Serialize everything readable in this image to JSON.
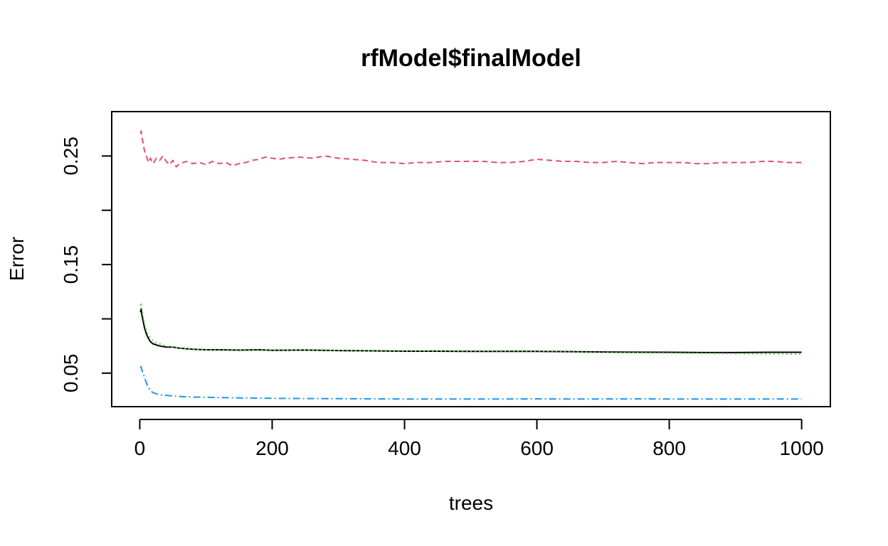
{
  "chart_data": {
    "type": "line",
    "title": "rfModel$finalModel",
    "xlabel": "trees",
    "ylabel": "Error",
    "xlim": [
      1,
      1000
    ],
    "ylim": [
      0.03,
      0.28
    ],
    "x_ticks": [
      0,
      200,
      400,
      600,
      800,
      1000
    ],
    "x_tick_labels": [
      "0",
      "200",
      "400",
      "600",
      "800",
      "1000"
    ],
    "y_ticks": [
      0.05,
      0.1,
      0.15,
      0.2,
      0.25
    ],
    "y_tick_labels": [
      "0.05",
      "",
      "0.15",
      "",
      "0.25"
    ],
    "grid": false,
    "legend": false,
    "colors": [
      "#000000",
      "#DF536B",
      "#61D04F",
      "#2297E6"
    ],
    "series": [
      {
        "color": "#000000",
        "dash": "solid",
        "x": [
          1,
          2,
          3,
          5,
          7,
          10,
          13,
          16,
          20,
          25,
          30,
          40,
          50,
          60,
          80,
          100,
          120,
          150,
          180,
          200,
          250,
          300,
          350,
          400,
          450,
          500,
          550,
          600,
          650,
          700,
          750,
          800,
          850,
          900,
          950,
          1000
        ],
        "y": [
          0.106,
          0.109,
          0.104,
          0.098,
          0.092,
          0.086,
          0.082,
          0.079,
          0.077,
          0.076,
          0.075,
          0.074,
          0.074,
          0.073,
          0.072,
          0.0715,
          0.0715,
          0.0712,
          0.0715,
          0.071,
          0.0713,
          0.0708,
          0.0705,
          0.0702,
          0.0702,
          0.07,
          0.07,
          0.07,
          0.0698,
          0.0695,
          0.0693,
          0.0692,
          0.069,
          0.069,
          0.0692,
          0.0692
        ]
      },
      {
        "color": "#DF536B",
        "dash": "8,5",
        "x": [
          1,
          2,
          3,
          5,
          7,
          10,
          13,
          16,
          20,
          25,
          30,
          35,
          40,
          45,
          50,
          55,
          60,
          70,
          80,
          90,
          100,
          110,
          120,
          130,
          140,
          150,
          160,
          170,
          180,
          190,
          200,
          210,
          220,
          240,
          260,
          280,
          300,
          320,
          340,
          360,
          380,
          400,
          420,
          440,
          460,
          480,
          500,
          520,
          540,
          560,
          580,
          600,
          620,
          640,
          660,
          680,
          700,
          720,
          740,
          760,
          780,
          800,
          820,
          840,
          860,
          880,
          900,
          920,
          940,
          960,
          980,
          1000
        ],
        "y": [
          0.271,
          0.273,
          0.268,
          0.262,
          0.255,
          0.25,
          0.244,
          0.248,
          0.243,
          0.248,
          0.246,
          0.25,
          0.245,
          0.242,
          0.246,
          0.24,
          0.243,
          0.245,
          0.243,
          0.244,
          0.242,
          0.245,
          0.243,
          0.244,
          0.241,
          0.243,
          0.244,
          0.246,
          0.247,
          0.249,
          0.248,
          0.247,
          0.248,
          0.249,
          0.248,
          0.25,
          0.248,
          0.247,
          0.246,
          0.244,
          0.244,
          0.243,
          0.244,
          0.244,
          0.245,
          0.245,
          0.245,
          0.245,
          0.244,
          0.244,
          0.245,
          0.247,
          0.246,
          0.245,
          0.245,
          0.244,
          0.244,
          0.245,
          0.244,
          0.243,
          0.244,
          0.244,
          0.244,
          0.243,
          0.243,
          0.244,
          0.244,
          0.244,
          0.245,
          0.245,
          0.244,
          0.244
        ]
      },
      {
        "color": "#61D04F",
        "dash": "2,4",
        "x": [
          1,
          2,
          3,
          5,
          7,
          10,
          13,
          16,
          20,
          25,
          30,
          40,
          50,
          60,
          80,
          100,
          120,
          150,
          180,
          200,
          250,
          300,
          350,
          400,
          450,
          500,
          550,
          600,
          650,
          700,
          750,
          800,
          850,
          900,
          950,
          1000
        ],
        "y": [
          0.112,
          0.115,
          0.11,
          0.103,
          0.096,
          0.089,
          0.085,
          0.082,
          0.08,
          0.078,
          0.077,
          0.075,
          0.074,
          0.073,
          0.072,
          0.0715,
          0.0712,
          0.071,
          0.0712,
          0.071,
          0.0712,
          0.0708,
          0.0704,
          0.07,
          0.07,
          0.0698,
          0.0698,
          0.0698,
          0.0695,
          0.069,
          0.0688,
          0.0685,
          0.0683,
          0.068,
          0.0678,
          0.0676
        ]
      },
      {
        "color": "#2297E6",
        "dash": "10,4,2,4",
        "x": [
          1,
          2,
          3,
          5,
          7,
          10,
          13,
          16,
          20,
          25,
          30,
          40,
          50,
          60,
          80,
          100,
          120,
          150,
          180,
          200,
          250,
          300,
          350,
          400,
          450,
          500,
          550,
          600,
          650,
          700,
          750,
          800,
          850,
          900,
          950,
          1000
        ],
        "y": [
          0.055,
          0.056,
          0.053,
          0.05,
          0.046,
          0.041,
          0.037,
          0.034,
          0.032,
          0.031,
          0.03,
          0.0295,
          0.029,
          0.0285,
          0.028,
          0.0278,
          0.0275,
          0.0272,
          0.027,
          0.0268,
          0.0266,
          0.0265,
          0.0263,
          0.0262,
          0.0262,
          0.0262,
          0.0262,
          0.0263,
          0.0262,
          0.0262,
          0.0263,
          0.0262,
          0.0262,
          0.0262,
          0.0262,
          0.0262
        ]
      }
    ]
  }
}
